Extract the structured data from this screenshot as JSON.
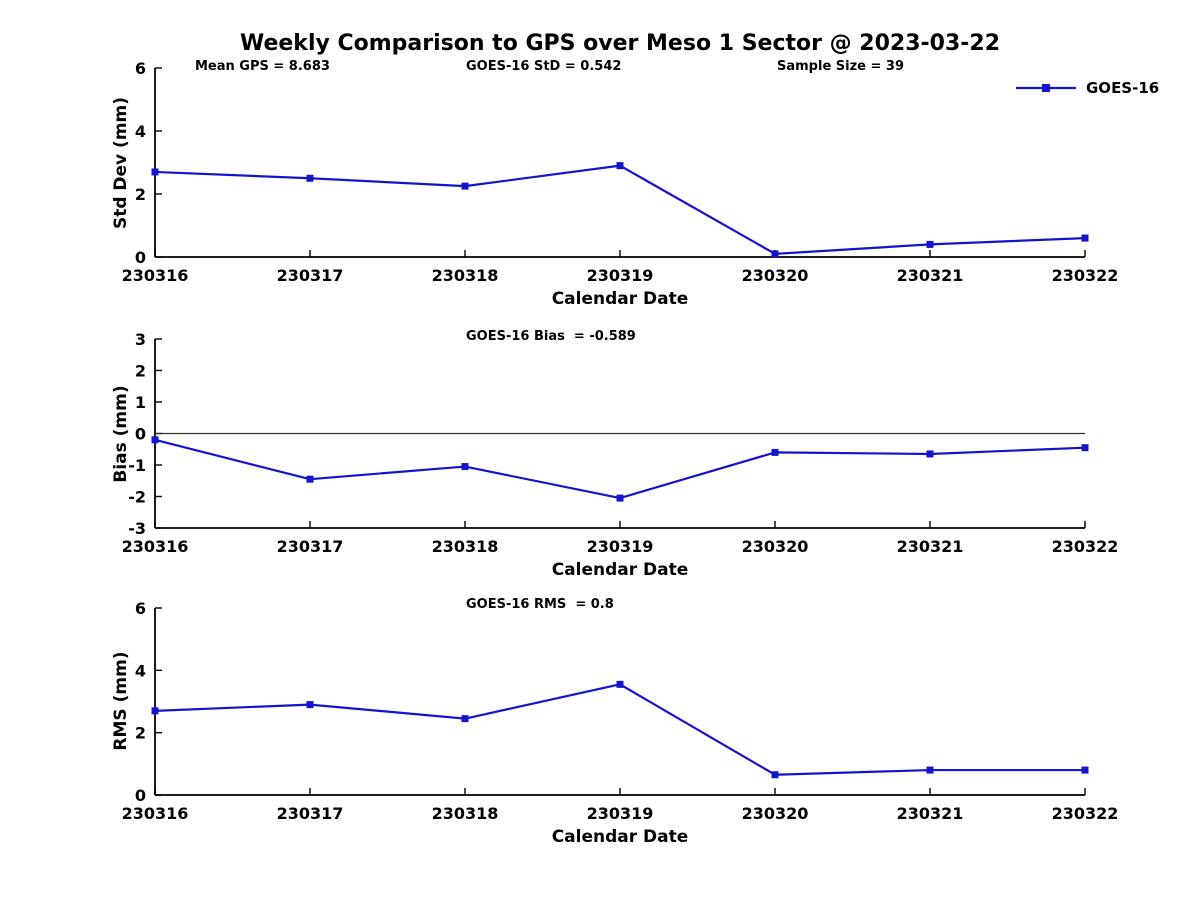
{
  "title": "Weekly Comparison to GPS over Meso 1 Sector @ 2023-03-22",
  "legend": {
    "label": "GOES-16"
  },
  "colors": {
    "line": "#1414cc",
    "axis": "#000000",
    "text": "#000000",
    "zero_line": "#333333",
    "background": "#ffffff"
  },
  "chart_data": [
    {
      "type": "line",
      "panel": "std-dev",
      "annotations": {
        "mean_gps": "Mean GPS = 8.683",
        "std": "GOES-16 StD = 0.542",
        "sample_size": "Sample Size = 39"
      },
      "x": [
        "230316",
        "230317",
        "230318",
        "230319",
        "230320",
        "230321",
        "230322"
      ],
      "series": [
        {
          "name": "GOES-16",
          "values": [
            2.7,
            2.5,
            2.25,
            2.9,
            0.1,
            0.4,
            0.6
          ]
        }
      ],
      "xlabel": "Calendar Date",
      "ylabel": "Std Dev (mm)",
      "ylim": [
        0,
        6
      ],
      "yticks": [
        0,
        2,
        4,
        6
      ],
      "zero_line": false,
      "grid": false,
      "legend_position": "top-right"
    },
    {
      "type": "line",
      "panel": "bias",
      "annotations": {
        "bias": "GOES-16 Bias  = -0.589"
      },
      "x": [
        "230316",
        "230317",
        "230318",
        "230319",
        "230320",
        "230321",
        "230322"
      ],
      "series": [
        {
          "name": "GOES-16",
          "values": [
            -0.2,
            -1.45,
            -1.05,
            -2.05,
            -0.6,
            -0.65,
            -0.45
          ]
        }
      ],
      "xlabel": "Calendar Date",
      "ylabel": "Bias (mm)",
      "ylim": [
        -3,
        3
      ],
      "yticks": [
        -3,
        -2,
        -1,
        0,
        1,
        2,
        3
      ],
      "zero_line": true,
      "grid": false
    },
    {
      "type": "line",
      "panel": "rms",
      "annotations": {
        "rms": "GOES-16 RMS  = 0.8"
      },
      "x": [
        "230316",
        "230317",
        "230318",
        "230319",
        "230320",
        "230321",
        "230322"
      ],
      "series": [
        {
          "name": "GOES-16",
          "values": [
            2.7,
            2.9,
            2.45,
            3.55,
            0.65,
            0.8,
            0.8
          ]
        }
      ],
      "xlabel": "Calendar Date",
      "ylabel": "RMS (mm)",
      "ylim": [
        0,
        6
      ],
      "yticks": [
        0,
        2,
        4,
        6
      ],
      "zero_line": false,
      "grid": false
    }
  ]
}
